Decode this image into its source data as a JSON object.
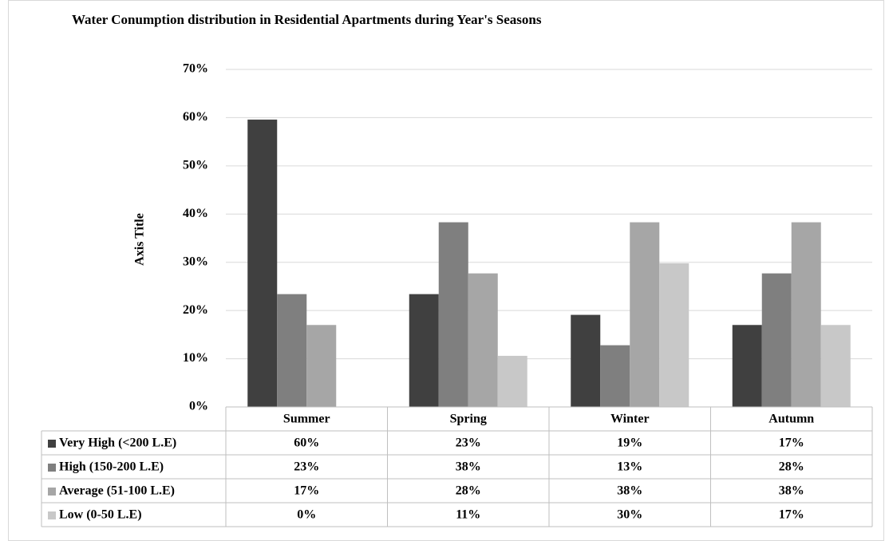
{
  "chart_data": {
    "type": "bar",
    "title": "Water Conumption distribution  in Residential Apartments during Year's Seasons",
    "y_label": "Axis Title",
    "categories": [
      "Summer",
      "Spring",
      "Winter",
      "Autumn"
    ],
    "series": [
      {
        "name": "Very High (<200 L.E)",
        "color": "#404040",
        "values": [
          59.6,
          23.4,
          19.1,
          17.0
        ],
        "value_labels": [
          "60%",
          "23%",
          "19%",
          "17%"
        ]
      },
      {
        "name": "High (150-200 L.E)",
        "color": "#7f7f7f",
        "values": [
          23.4,
          38.3,
          12.8,
          27.7
        ],
        "value_labels": [
          "23%",
          "38%",
          "13%",
          "28%"
        ]
      },
      {
        "name": "Average (51-100 L.E)",
        "color": "#a6a6a6",
        "values": [
          17.0,
          27.7,
          38.3,
          38.3
        ],
        "value_labels": [
          "17%",
          "28%",
          "38%",
          "38%"
        ]
      },
      {
        "name": "Low (0-50 L.E)",
        "color": "#c8c8c8",
        "values": [
          0,
          10.6,
          29.8,
          17.0
        ],
        "value_labels": [
          "0%",
          "11%",
          "30%",
          "17%"
        ]
      }
    ],
    "ylim": [
      0,
      70
    ],
    "yticks": [
      {
        "value": 0,
        "label": "0%"
      },
      {
        "value": 10,
        "label": "10%"
      },
      {
        "value": 20,
        "label": "20%"
      },
      {
        "value": 30,
        "label": "30%"
      },
      {
        "value": 40,
        "label": "40%"
      },
      {
        "value": 50,
        "label": "50%"
      },
      {
        "value": 60,
        "label": "60%"
      },
      {
        "value": 70,
        "label": "70%"
      }
    ],
    "grid": true
  }
}
